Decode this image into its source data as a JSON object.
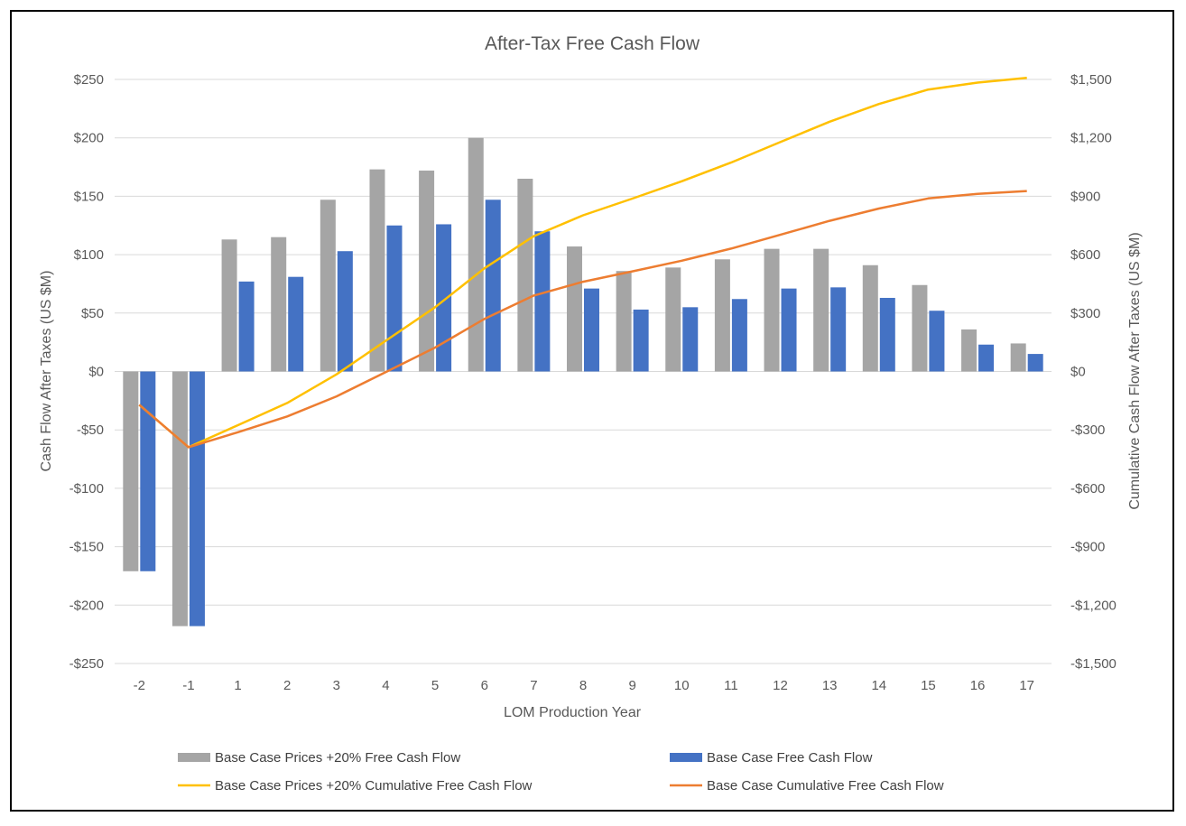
{
  "chart_data": {
    "type": "bar",
    "title": "After-Tax Free Cash Flow",
    "xlabel": "LOM Production Year",
    "ylabel": "Cash Flow After Taxes (US $M)",
    "y2label": "Cumulative Cash Flow After Taxes (US $M)",
    "ylim": [
      -250,
      250
    ],
    "y2lim": [
      -1500,
      1500
    ],
    "yticks": [
      "$250",
      "$200",
      "$150",
      "$100",
      "$50",
      "$0",
      "-$50",
      "-$100",
      "-$150",
      "-$200",
      "-$250"
    ],
    "y2ticks": [
      "$1,500",
      "$1,200",
      "$900",
      "$600",
      "$300",
      "$0",
      "-$300",
      "-$600",
      "-$900",
      "-$1,200",
      "-$1,500"
    ],
    "grid": true,
    "legend": "bottom",
    "categories": [
      "-2",
      "-1",
      "1",
      "2",
      "3",
      "4",
      "5",
      "6",
      "7",
      "8",
      "9",
      "10",
      "11",
      "12",
      "13",
      "14",
      "15",
      "16",
      "17"
    ],
    "series": [
      {
        "name": "Base Case Prices +20% Free Cash Flow",
        "kind": "bar",
        "axis": "left",
        "color": "#A5A5A5",
        "values": [
          -171,
          -218,
          113,
          115,
          147,
          173,
          172,
          200,
          165,
          107,
          86,
          89,
          96,
          105,
          105,
          91,
          74,
          36,
          24
        ]
      },
      {
        "name": "Base Case Free Cash Flow",
        "kind": "bar",
        "axis": "left",
        "color": "#4472C4",
        "values": [
          -171,
          -218,
          77,
          81,
          103,
          125,
          126,
          147,
          120,
          71,
          53,
          55,
          62,
          71,
          72,
          63,
          52,
          23,
          15
        ]
      },
      {
        "name": "Base Case Prices +20% Cumulative Free Cash Flow",
        "kind": "line",
        "axis": "right",
        "color": "#FFC000",
        "values": [
          -171,
          -389,
          -276,
          -162,
          -15,
          158,
          330,
          530,
          695,
          802,
          888,
          977,
          1073,
          1178,
          1283,
          1374,
          1448,
          1484,
          1508
        ]
      },
      {
        "name": "Base Case Cumulative Free Cash Flow",
        "kind": "line",
        "axis": "right",
        "color": "#ED7D31",
        "values": [
          -171,
          -389,
          -312,
          -231,
          -128,
          -3,
          123,
          270,
          390,
          461,
          514,
          569,
          631,
          702,
          774,
          837,
          889,
          912,
          927
        ]
      }
    ]
  }
}
